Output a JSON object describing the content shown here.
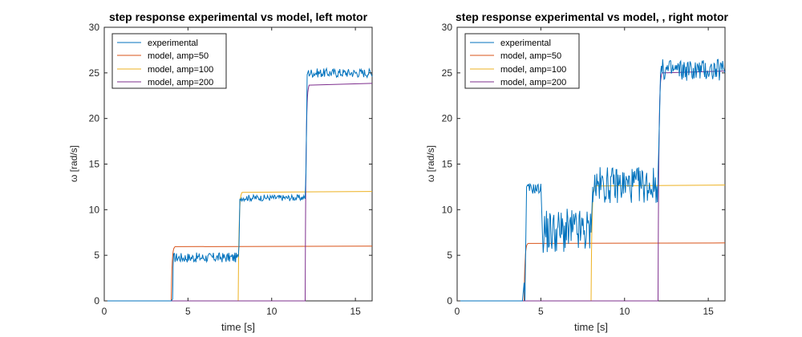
{
  "chart_data": [
    {
      "type": "line",
      "title": "step response experimental vs model, left motor",
      "xlabel": "time [s]",
      "ylabel": "ω [rad/s]",
      "xlim": [
        0,
        16
      ],
      "ylim": [
        0,
        30
      ],
      "xticks": [
        0,
        5,
        10,
        15
      ],
      "yticks": [
        0,
        5,
        10,
        15,
        20,
        25,
        30
      ],
      "grid": false,
      "legend_position": "top-left",
      "series": [
        {
          "name": "experimental",
          "color": "#0072BD",
          "style": "noisy_steps",
          "points": [
            [
              0,
              0
            ],
            [
              4.0,
              0
            ],
            [
              4.08,
              0.2
            ],
            [
              4.12,
              4.3
            ],
            [
              8.0,
              4.8
            ],
            [
              8.05,
              6.0
            ],
            [
              8.1,
              11.2
            ],
            [
              12.0,
              11.5
            ],
            [
              12.05,
              14.0
            ],
            [
              12.12,
              24.8
            ],
            [
              16,
              24.6
            ]
          ],
          "noise_segments": [
            {
              "x": [
                4.15,
                8.0
              ],
              "mean": 4.75,
              "amp": 0.55
            },
            {
              "x": [
                8.15,
                12.0
              ],
              "mean": 11.3,
              "amp": 0.35
            },
            {
              "x": [
                12.2,
                15.9
              ],
              "mean": 25.0,
              "amp": 0.5
            }
          ]
        },
        {
          "name": "model, amp=50",
          "color": "#D95319",
          "step_time": 4.0,
          "level": 6.0,
          "tau": 0.05
        },
        {
          "name": "model, amp=100",
          "color": "#EDB120",
          "step_time": 8.0,
          "level": 12.0,
          "tau": 0.05
        },
        {
          "name": "model, amp=200",
          "color": "#7E2F8E",
          "step_time": 12.0,
          "level": 23.85,
          "tau": 0.05
        }
      ]
    },
    {
      "type": "line",
      "title": "step response experimental vs model, , right motor",
      "xlabel": "time [s]",
      "ylabel": "ω [rad/s]",
      "xlim": [
        0,
        16
      ],
      "ylim": [
        0,
        30
      ],
      "xticks": [
        0,
        5,
        10,
        15
      ],
      "yticks": [
        0,
        5,
        10,
        15,
        20,
        25,
        30
      ],
      "grid": false,
      "legend_position": "top-left",
      "series": [
        {
          "name": "experimental",
          "color": "#0072BD",
          "style": "noisy_steps",
          "points": [
            [
              0,
              0
            ],
            [
              3.9,
              0
            ],
            [
              4.0,
              2.0
            ],
            [
              4.05,
              0
            ],
            [
              4.15,
              12.5
            ],
            [
              5.0,
              12.8
            ],
            [
              5.1,
              7.0
            ],
            [
              8.0,
              7.5
            ],
            [
              8.1,
              12.5
            ],
            [
              12.0,
              14.0
            ],
            [
              12.05,
              17.0
            ],
            [
              12.15,
              25.0
            ],
            [
              16,
              25.0
            ]
          ],
          "noise_segments": [
            {
              "x": [
                4.2,
                5.0
              ],
              "mean": 12.3,
              "amp": 0.6
            },
            {
              "x": [
                5.1,
                8.0
              ],
              "mean": 7.6,
              "amp": 2.5
            },
            {
              "x": [
                8.1,
                12.0
              ],
              "mean": 12.7,
              "amp": 2.0
            },
            {
              "x": [
                12.2,
                15.9
              ],
              "mean": 25.3,
              "amp": 1.2
            }
          ]
        },
        {
          "name": "model, amp=50",
          "color": "#D95319",
          "step_time": 4.0,
          "level": 6.35,
          "tau": 0.05
        },
        {
          "name": "model, amp=100",
          "color": "#EDB120",
          "step_time": 8.0,
          "level": 12.7,
          "tau": 0.05
        },
        {
          "name": "model, amp=200",
          "color": "#7E2F8E",
          "step_time": 12.0,
          "level": 25.2,
          "tau": 0.05
        }
      ]
    }
  ]
}
